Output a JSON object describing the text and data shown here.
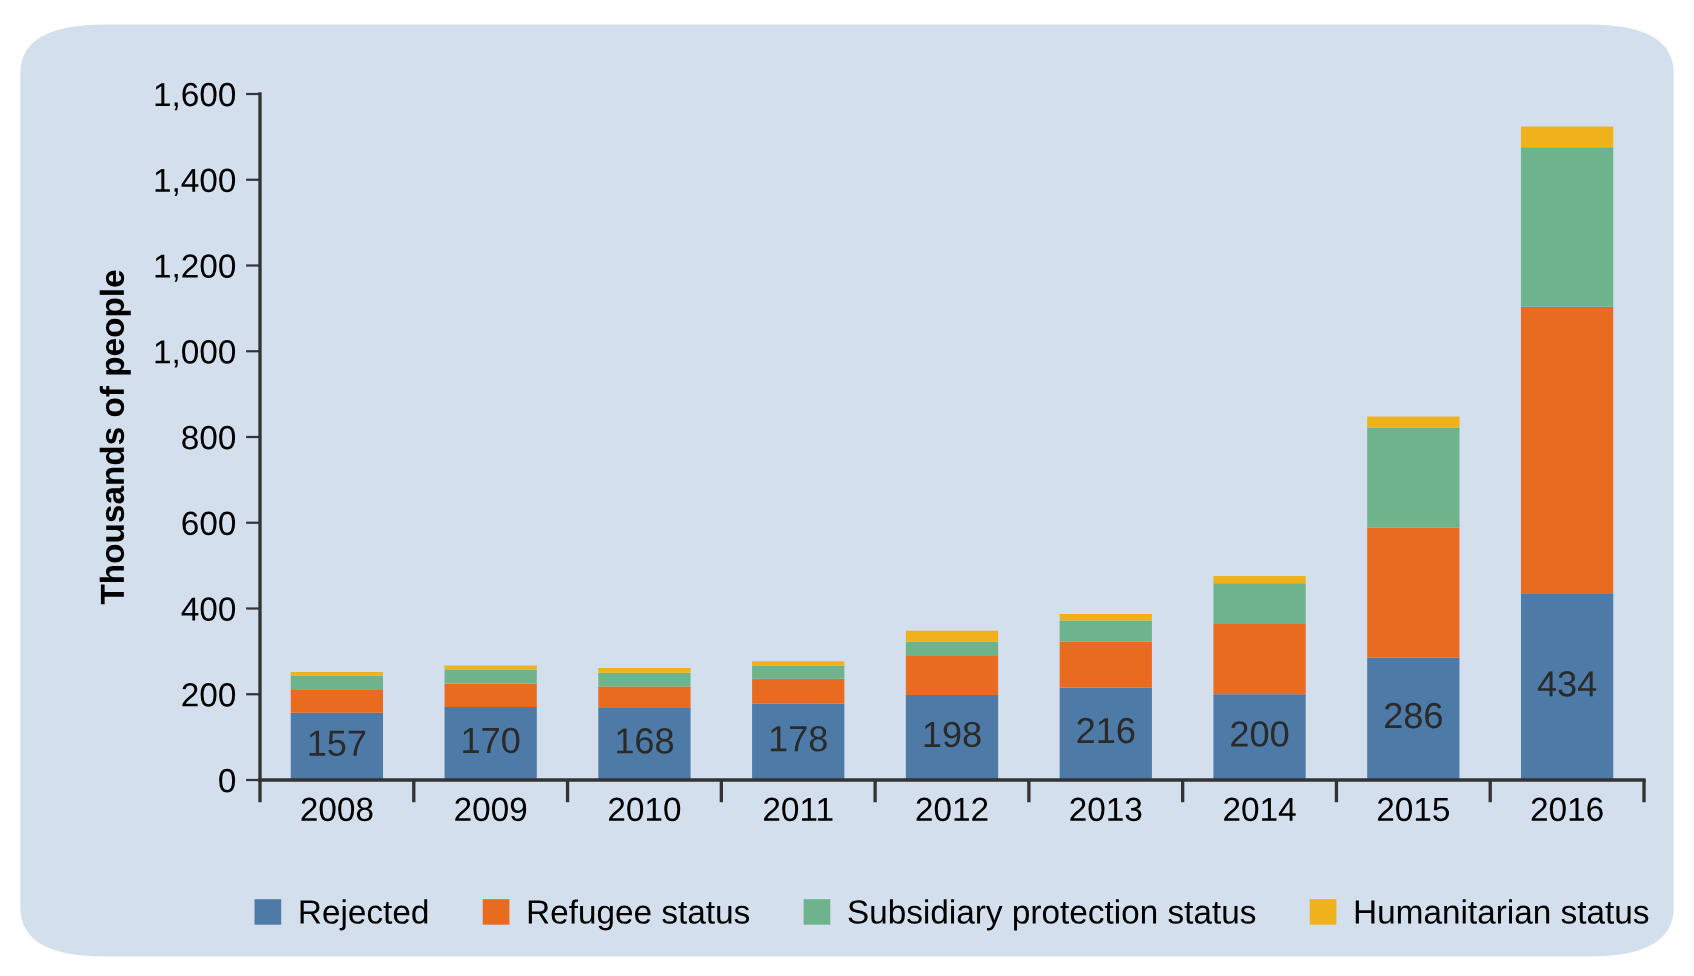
{
  "chart_data": {
    "type": "bar",
    "stacked": true,
    "ylabel": "Thousands of people",
    "categories": [
      "2008",
      "2009",
      "2010",
      "2011",
      "2012",
      "2013",
      "2014",
      "2015",
      "2016"
    ],
    "series": [
      {
        "name": "Rejected",
        "color": "#4e7aa7",
        "values": [
          157,
          170,
          168,
          178,
          198,
          216,
          200,
          286,
          434
        ],
        "value_labels": [
          "157",
          "170",
          "168",
          "178",
          "198",
          "216",
          "200",
          "286",
          "434"
        ]
      },
      {
        "name": "Refugee status",
        "color": "#e86b20",
        "values": [
          53,
          55,
          50,
          58,
          93,
          107,
          164,
          303,
          670
        ]
      },
      {
        "name": "Subsidiary protection status",
        "color": "#6db38b",
        "values": [
          34,
          33,
          32,
          31,
          32,
          49,
          95,
          233,
          372
        ]
      },
      {
        "name": "Humanitarian status",
        "color": "#f0b21a",
        "values": [
          8,
          9,
          11,
          10,
          25,
          15,
          17,
          26,
          48
        ]
      }
    ],
    "ylim": [
      0,
      1600
    ],
    "yticks": [
      {
        "value": 0,
        "label": "0"
      },
      {
        "value": 200,
        "label": "200"
      },
      {
        "value": 400,
        "label": "400"
      },
      {
        "value": 600,
        "label": "600"
      },
      {
        "value": 800,
        "label": "800"
      },
      {
        "value": 1000,
        "label": "1,000"
      },
      {
        "value": 1200,
        "label": "1,200"
      },
      {
        "value": 1400,
        "label": "1,400"
      },
      {
        "value": 1600,
        "label": "1,600"
      }
    ],
    "grid": false,
    "legend": "bottom"
  }
}
